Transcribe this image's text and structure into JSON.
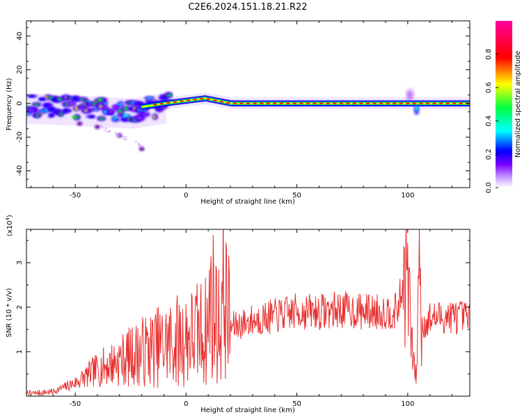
{
  "title": "C2E6.2024.151.18.21.R22",
  "chart_data": [
    {
      "type": "heatmap",
      "xlabel": "Height of straight line (km)",
      "ylabel": "Frequency (Hz)",
      "xlim": [
        -72,
        128
      ],
      "ylim": [
        -50,
        49
      ],
      "xticks": [
        -50,
        0,
        50,
        100
      ],
      "yticks": [
        -40,
        -20,
        0,
        20,
        40
      ],
      "colorbar": {
        "label": "Normalized spectral amplitude",
        "range": [
          0,
          1
        ],
        "ticks": [
          "0.0",
          "0.2",
          "0.4",
          "0.6",
          "0.8"
        ],
        "colors": [
          "#ffffff",
          "#9b30ff",
          "#0000ff",
          "#00ffff",
          "#00ff00",
          "#ffff00",
          "#ff0000",
          "#ff00ff"
        ]
      },
      "ridge": [
        {
          "x": -72,
          "f": 0
        },
        {
          "x": -40,
          "f": -2
        },
        {
          "x": -25,
          "f": -3
        },
        {
          "x": -10,
          "f": 0
        },
        {
          "x": 8,
          "f": 3
        },
        {
          "x": 20,
          "f": 0
        },
        {
          "x": 128,
          "f": 0
        }
      ],
      "tails": [
        {
          "x": -48,
          "f": -12
        },
        {
          "x": -40,
          "f": -14
        },
        {
          "x": -30,
          "f": -19
        },
        {
          "x": -20,
          "f": -27
        }
      ]
    },
    {
      "type": "line",
      "xlabel": "Height of straight line (km)",
      "ylabel": "SNR (10 * v/v)",
      "exponent_label": "(x10",
      "exponent_power": "4",
      "exponent_close": ")",
      "xlim": [
        -72,
        128
      ],
      "ylim": [
        0,
        3.75
      ],
      "xticks": [
        -50,
        0,
        50,
        100
      ],
      "yticks": [
        1,
        2,
        3
      ],
      "line_color": "#e83030",
      "x": [
        -72,
        -60,
        -50,
        -45,
        -40,
        -30,
        -20,
        -10,
        0,
        5,
        10,
        11,
        15,
        17,
        20,
        30,
        40,
        50,
        60,
        70,
        80,
        90,
        95,
        100,
        102,
        104,
        105,
        106,
        110,
        120,
        128
      ],
      "y": [
        0.05,
        0.1,
        0.3,
        0.45,
        0.6,
        0.8,
        1.0,
        1.15,
        1.3,
        1.4,
        1.5,
        2.3,
        1.55,
        2.4,
        1.55,
        1.7,
        1.8,
        1.9,
        1.9,
        1.95,
        1.9,
        1.9,
        1.9,
        2.8,
        1.0,
        0.4,
        3.7,
        1.5,
        1.75,
        1.8,
        1.75
      ]
    }
  ]
}
